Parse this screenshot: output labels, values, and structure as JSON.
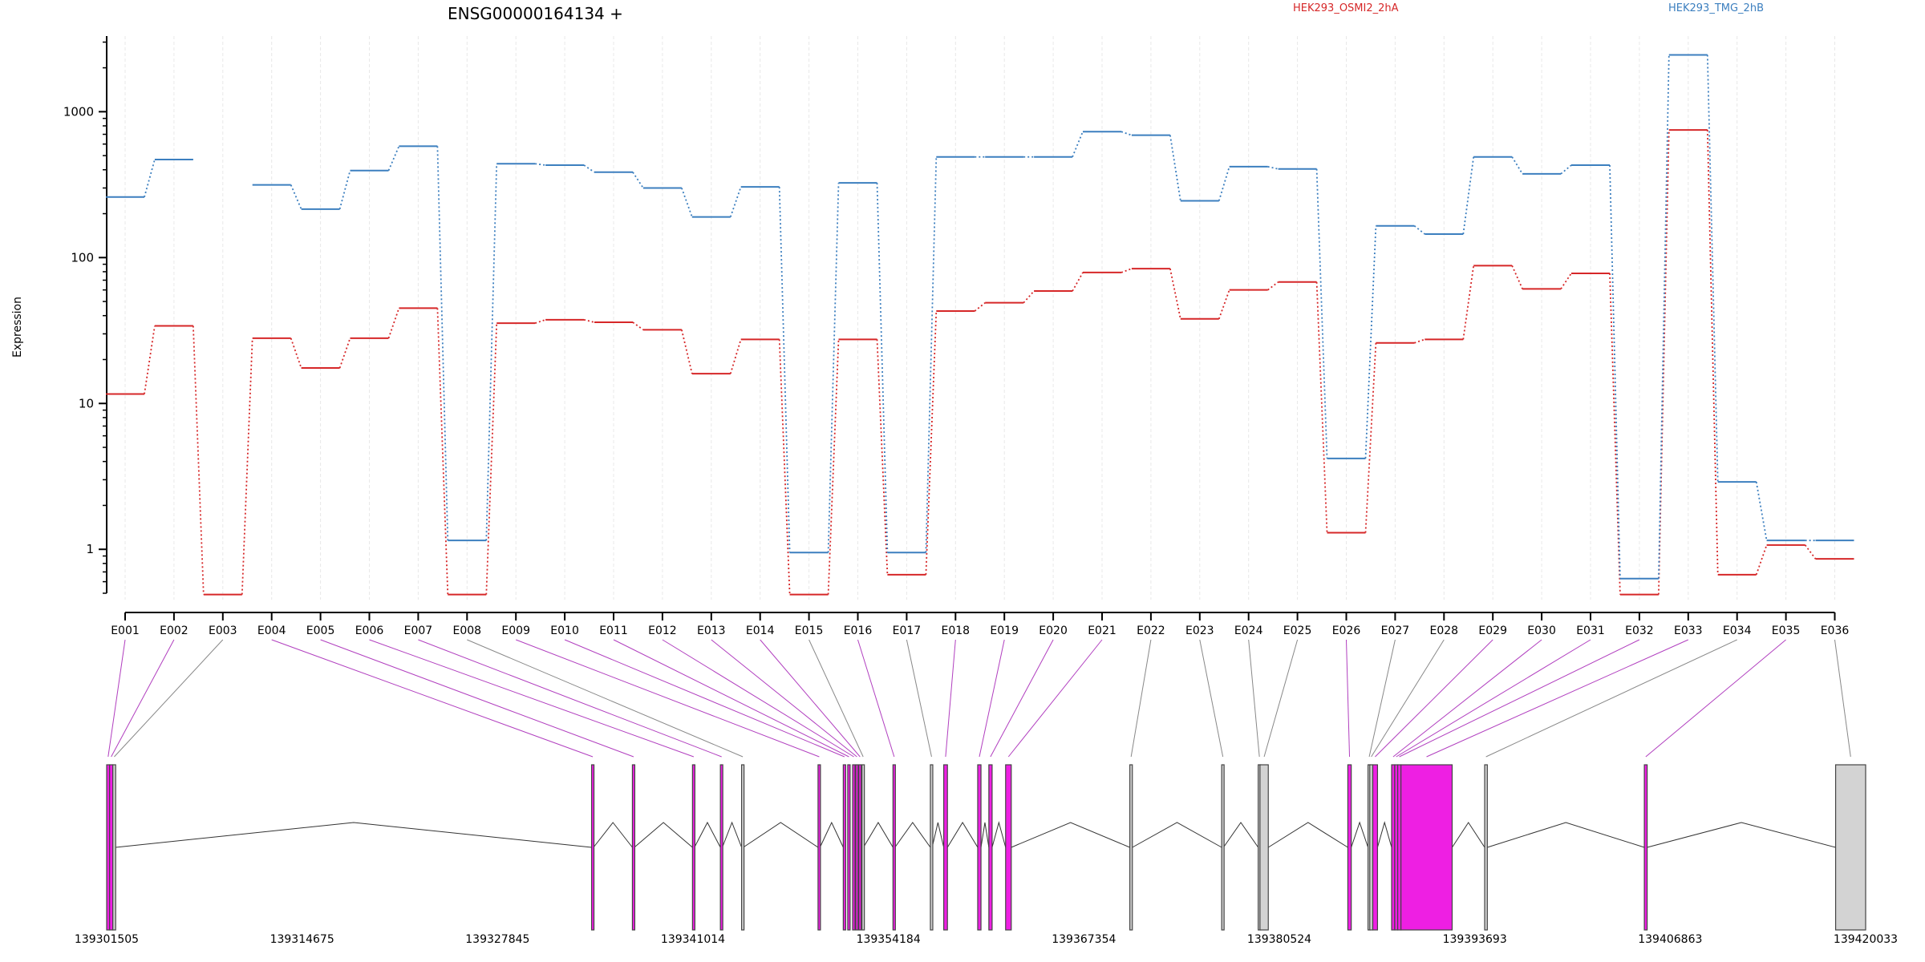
{
  "chart_data": {
    "type": "line",
    "title": "ENSG00000164134 +",
    "xlabel": "",
    "ylabel": "Expression",
    "y_scale": "log",
    "ylim": [
      0.5,
      3300
    ],
    "y_ticks": [
      1,
      10,
      100,
      1000
    ],
    "grid": "vertical",
    "legend_position": "top",
    "categories": [
      "E001",
      "E002",
      "E003",
      "E004",
      "E005",
      "E006",
      "E007",
      "E008",
      "E009",
      "E010",
      "E011",
      "E012",
      "E013",
      "E014",
      "E015",
      "E016",
      "E017",
      "E018",
      "E019",
      "E020",
      "E021",
      "E022",
      "E023",
      "E024",
      "E025",
      "E026",
      "E027",
      "E028",
      "E029",
      "E030",
      "E031",
      "E032",
      "E033",
      "E034",
      "E035",
      "E036"
    ],
    "series": [
      {
        "name": "HEK293_OSMI2_2hA",
        "color": "#d62728",
        "values": [
          11.6,
          34,
          0.49,
          28,
          17.5,
          28,
          45,
          0.49,
          35.5,
          37.5,
          36,
          32,
          16,
          27.5,
          0.49,
          27.5,
          0.67,
          43,
          49,
          59,
          79,
          84,
          38,
          60,
          68,
          1.3,
          26,
          27.5,
          88,
          61,
          78,
          0.49,
          750,
          0.67,
          1.07,
          0.86
        ]
      },
      {
        "name": "HEK293_TMG_2hB",
        "color": "#3c7fbf",
        "values": [
          260,
          470,
          null,
          315,
          215,
          395,
          580,
          1.15,
          440,
          430,
          385,
          300,
          190,
          305,
          0.95,
          325,
          0.95,
          490,
          490,
          490,
          730,
          690,
          245,
          420,
          405,
          4.2,
          165,
          145,
          490,
          375,
          430,
          0.63,
          2450,
          2.9,
          1.15,
          1.15
        ]
      }
    ],
    "gene_model": {
      "coordinate_ticks": [
        "139301505",
        "139314675",
        "139327845",
        "139341014",
        "139354184",
        "139367354",
        "139380524",
        "139393693",
        "139406863",
        "139420033"
      ],
      "coordinate_range": [
        139301505,
        139420033
      ],
      "exon_fill_colors": {
        "highlighted": "#ee1fe3",
        "normal": "#d3d3d3"
      },
      "exons": [
        {
          "id": "E001",
          "start": 139301505,
          "end": 139301700,
          "highlighted": true
        },
        {
          "id": "E002",
          "start": 139301700,
          "end": 139301920,
          "highlighted": true
        },
        {
          "id": "E003",
          "start": 139301920,
          "end": 139302110,
          "highlighted": false
        },
        {
          "id": "E004",
          "start": 139334180,
          "end": 139334310,
          "highlighted": true
        },
        {
          "id": "E005",
          "start": 139336930,
          "end": 139337060,
          "highlighted": true
        },
        {
          "id": "E006",
          "start": 139340980,
          "end": 139341110,
          "highlighted": true
        },
        {
          "id": "E007",
          "start": 139342860,
          "end": 139342990,
          "highlighted": true
        },
        {
          "id": "E008",
          "start": 139344290,
          "end": 139344400,
          "highlighted": false
        },
        {
          "id": "E009",
          "start": 139349440,
          "end": 139349570,
          "highlighted": true
        },
        {
          "id": "E010",
          "start": 139351140,
          "end": 139351270,
          "highlighted": true
        },
        {
          "id": "E011",
          "start": 139351440,
          "end": 139351570,
          "highlighted": true
        },
        {
          "id": "E012",
          "start": 139351770,
          "end": 139351900,
          "highlighted": true
        },
        {
          "id": "E013",
          "start": 139351980,
          "end": 139352110,
          "highlighted": true
        },
        {
          "id": "E014",
          "start": 139352190,
          "end": 139352320,
          "highlighted": true
        },
        {
          "id": "E015",
          "start": 139352400,
          "end": 139352500,
          "highlighted": false
        },
        {
          "id": "E016",
          "start": 139354490,
          "end": 139354620,
          "highlighted": true
        },
        {
          "id": "E017",
          "start": 139357010,
          "end": 139357130,
          "highlighted": false
        },
        {
          "id": "E018",
          "start": 139357910,
          "end": 139358160,
          "highlighted": true
        },
        {
          "id": "E019",
          "start": 139360200,
          "end": 139360420,
          "highlighted": true
        },
        {
          "id": "E020",
          "start": 139360950,
          "end": 139361170,
          "highlighted": true
        },
        {
          "id": "E021",
          "start": 139362080,
          "end": 139362460,
          "highlighted": true
        },
        {
          "id": "E022",
          "start": 139370450,
          "end": 139370620,
          "highlighted": false
        },
        {
          "id": "E023",
          "start": 139376640,
          "end": 139376760,
          "highlighted": false
        },
        {
          "id": "E024",
          "start": 139379100,
          "end": 139379220,
          "highlighted": false
        },
        {
          "id": "E025",
          "start": 139379220,
          "end": 139379780,
          "highlighted": false
        },
        {
          "id": "E026",
          "start": 139385140,
          "end": 139385370,
          "highlighted": true
        },
        {
          "id": "E027",
          "start": 139386500,
          "end": 139386620,
          "highlighted": false
        },
        {
          "id": "E028",
          "start": 139386620,
          "end": 139386820,
          "highlighted": false
        },
        {
          "id": "E029",
          "start": 139386820,
          "end": 139387140,
          "highlighted": true
        },
        {
          "id": "E030",
          "start": 139388090,
          "end": 139388300,
          "highlighted": true
        },
        {
          "id": "E031",
          "start": 139388300,
          "end": 139388500,
          "highlighted": true
        },
        {
          "id": "E032",
          "start": 139388500,
          "end": 139388720,
          "highlighted": true
        },
        {
          "id": "E033",
          "start": 139388720,
          "end": 139392170,
          "highlighted": true
        },
        {
          "id": "E034",
          "start": 139394360,
          "end": 139394540,
          "highlighted": false
        },
        {
          "id": "E035",
          "start": 139405120,
          "end": 139405310,
          "highlighted": true
        },
        {
          "id": "E036",
          "start": 139418010,
          "end": 139420033,
          "highlighted": false
        }
      ]
    }
  }
}
